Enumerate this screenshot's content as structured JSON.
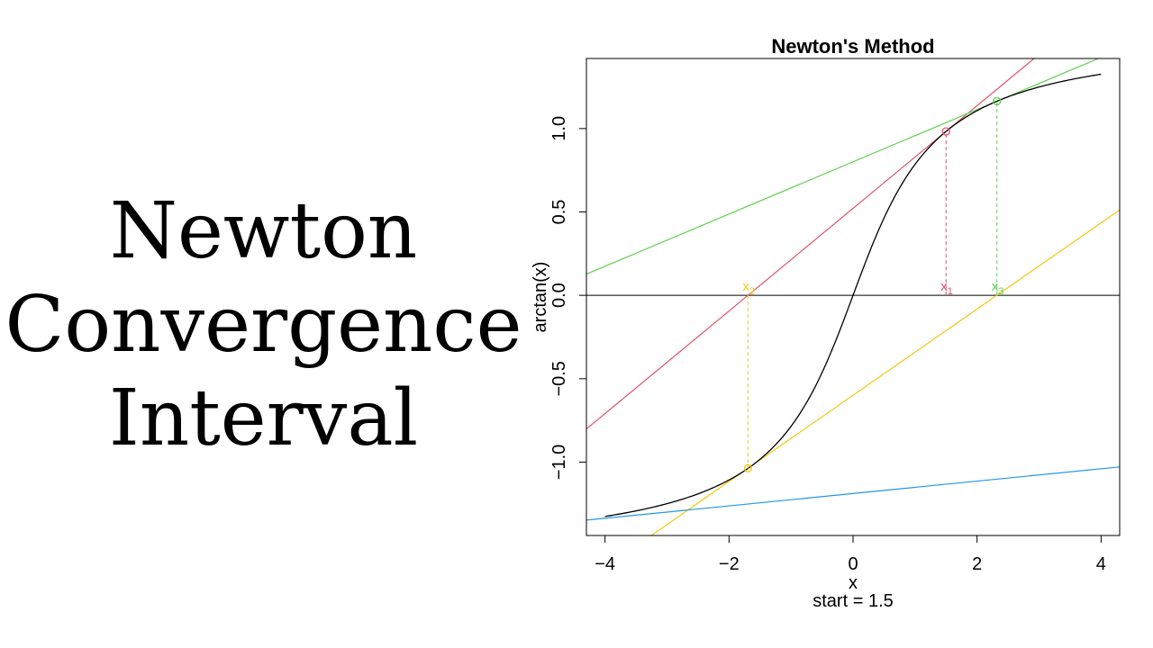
{
  "slide": {
    "title_lines": [
      "Newton",
      "Convergence",
      "Interval"
    ]
  },
  "chart_data": {
    "type": "line",
    "title": "Newton's Method",
    "xlabel": "x",
    "ylabel": "arctan(x)",
    "subtitle": "start = 1.5",
    "xlim": [
      -4.3,
      4.3
    ],
    "ylim": [
      -1.44,
      1.42
    ],
    "x_ticks": [
      -4,
      -2,
      0,
      2,
      4
    ],
    "x_tick_labels": [
      "−4",
      "−2",
      "0",
      "2",
      "4"
    ],
    "y_ticks": [
      -1.0,
      -0.5,
      0.0,
      0.5,
      1.0
    ],
    "y_tick_labels": [
      "−1.0",
      "−0.5",
      "0.0",
      "0.5",
      "1.0"
    ],
    "curve": {
      "function": "arctan",
      "x_range": [
        -4,
        4
      ],
      "color": "#000000"
    },
    "zero_line": {
      "y": 0,
      "color": "#000000"
    },
    "iterates": [
      {
        "label": "x",
        "subscript": "1",
        "x": 1.5,
        "y": 0.983,
        "color": "#DF536B"
      },
      {
        "label": "x",
        "subscript": "2",
        "x": -1.694,
        "y": -1.037,
        "color": "#F5C710"
      },
      {
        "label": "x",
        "subscript": "3",
        "x": 2.321,
        "y": 1.164,
        "color": "#61D04F"
      }
    ],
    "tangent_lines": [
      {
        "color": "#DF536B",
        "slope": 0.3077,
        "point": [
          1.5,
          0.983
        ]
      },
      {
        "color": "#F5C710",
        "slope": 0.2584,
        "point": [
          -1.694,
          -1.037
        ]
      },
      {
        "color": "#61D04F",
        "slope": 0.1566,
        "point": [
          2.321,
          1.164
        ]
      },
      {
        "color": "#2297E6",
        "slope": 0.0371,
        "point": [
          -5.114,
          -1.378
        ]
      }
    ]
  }
}
